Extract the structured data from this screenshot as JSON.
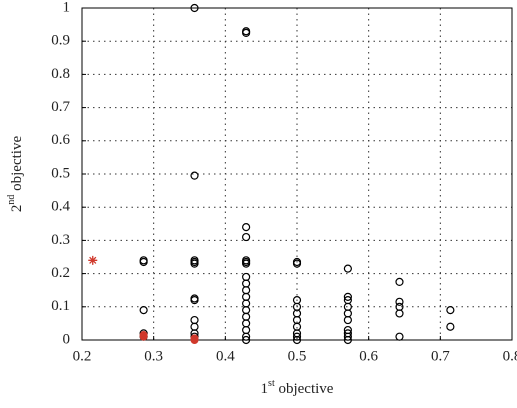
{
  "chart_data": {
    "type": "scatter",
    "xlabel": [
      "1",
      "st",
      " objective"
    ],
    "ylabel": [
      "2",
      "nd",
      " objective"
    ],
    "xlim": [
      0.2,
      0.8
    ],
    "xticks": [
      0.2,
      0.3,
      0.4,
      0.5,
      0.6,
      0.7,
      0.8
    ],
    "ylim": [
      0,
      1
    ],
    "yticks": [
      0,
      0.1,
      0.2,
      0.3,
      0.4,
      0.5,
      0.6,
      0.7,
      0.8,
      0.9,
      1
    ],
    "grid": true,
    "series": [
      {
        "color": "#000000",
        "marker": "open-circle",
        "x": [
          0.286,
          0.286,
          0.286,
          0.286,
          0.286,
          0.357,
          0.357,
          0.357,
          0.357,
          0.357,
          0.357,
          0.357,
          0.357,
          0.357,
          0.357,
          0.357,
          0.429,
          0.429,
          0.429,
          0.429,
          0.429,
          0.429,
          0.429,
          0.429,
          0.429,
          0.429,
          0.429,
          0.429,
          0.429,
          0.429,
          0.429,
          0.429,
          0.429,
          0.429,
          0.5,
          0.5,
          0.5,
          0.5,
          0.5,
          0.5,
          0.5,
          0.5,
          0.5,
          0.5,
          0.571,
          0.571,
          0.571,
          0.571,
          0.571,
          0.571,
          0.571,
          0.571,
          0.571,
          0.571,
          0.643,
          0.643,
          0.643,
          0.643,
          0.643,
          0.714,
          0.714
        ],
        "values": [
          0.24,
          0.235,
          0.09,
          0.02,
          0.01,
          1.0,
          0.495,
          0.24,
          0.235,
          0.23,
          0.125,
          0.12,
          0.06,
          0.04,
          0.02,
          0.01,
          0.93,
          0.925,
          0.34,
          0.31,
          0.24,
          0.235,
          0.23,
          0.19,
          0.17,
          0.15,
          0.13,
          0.11,
          0.09,
          0.07,
          0.05,
          0.03,
          0.01,
          0.0,
          0.235,
          0.23,
          0.12,
          0.1,
          0.08,
          0.06,
          0.04,
          0.02,
          0.01,
          0.0,
          0.215,
          0.13,
          0.12,
          0.1,
          0.08,
          0.06,
          0.03,
          0.02,
          0.01,
          0.0,
          0.175,
          0.115,
          0.1,
          0.08,
          0.01,
          0.09,
          0.04
        ]
      },
      {
        "color": "#d0382b",
        "marker": "star",
        "x": [
          0.215
        ],
        "values": [
          0.24
        ]
      },
      {
        "color": "#d0382b",
        "marker": "filled-circle",
        "x": [
          0.286,
          0.286,
          0.357,
          0.357
        ],
        "values": [
          0.015,
          0.01,
          0.005,
          0.0
        ]
      }
    ]
  }
}
